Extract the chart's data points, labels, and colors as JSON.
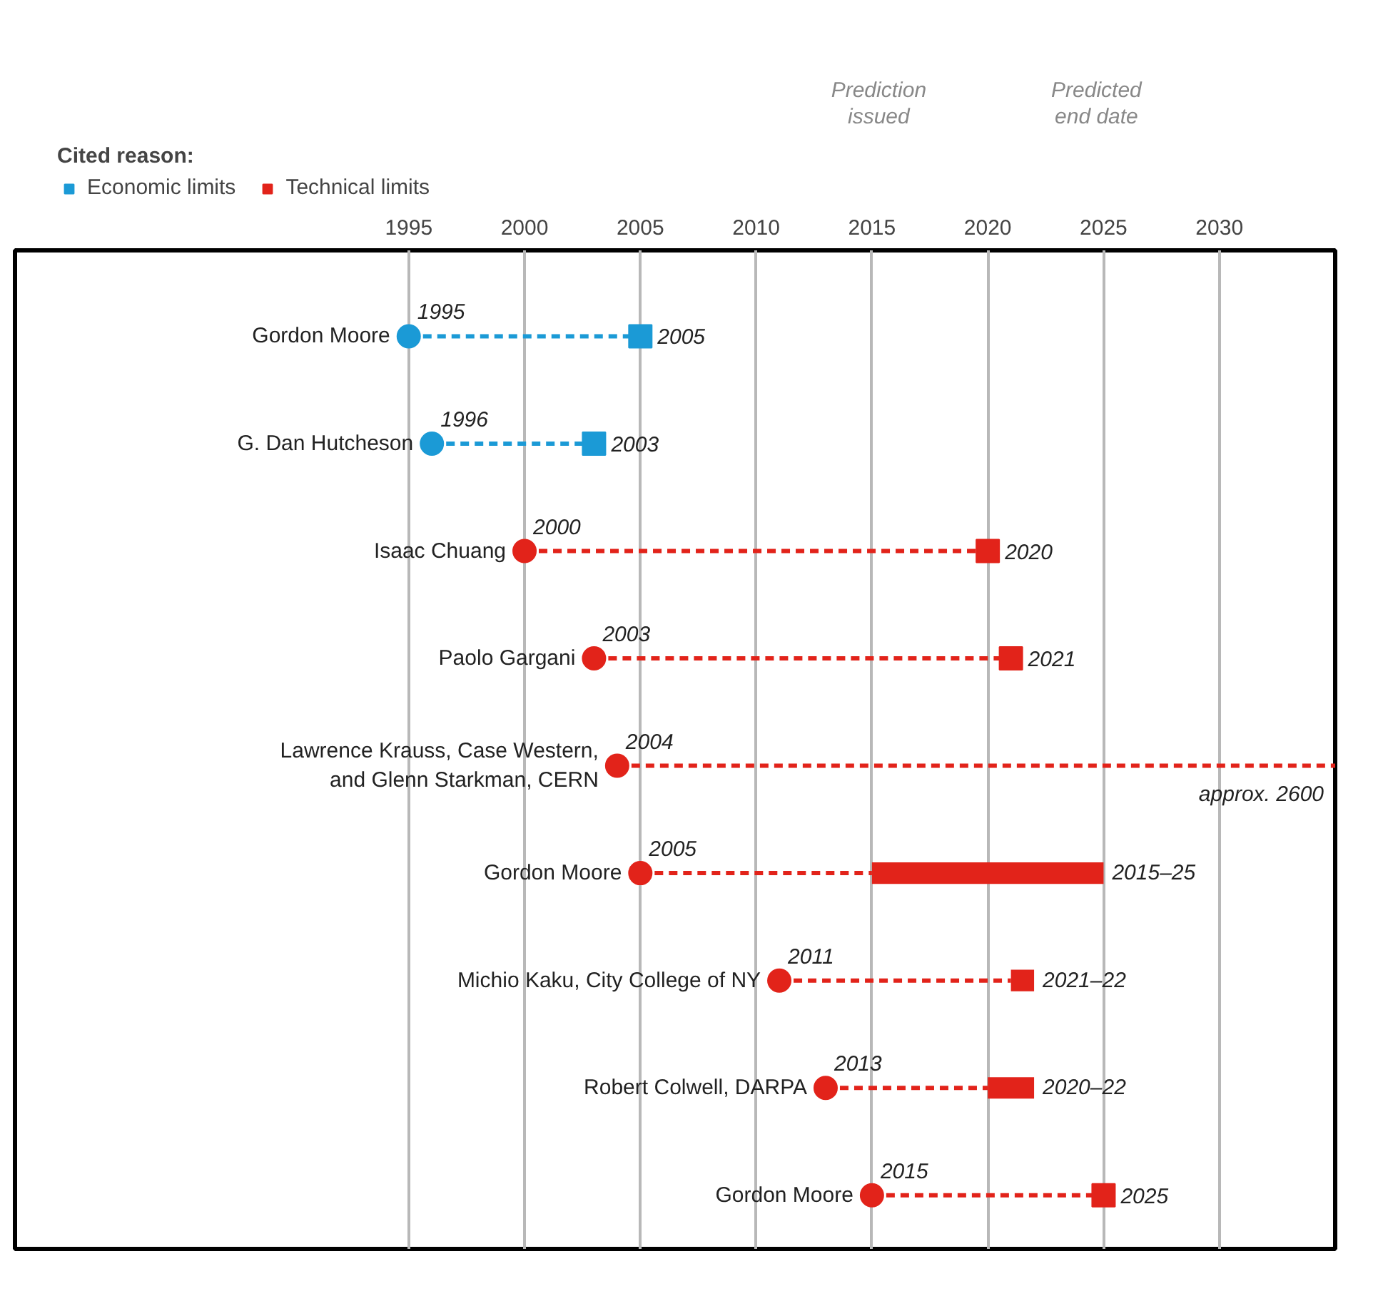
{
  "chart_data": {
    "type": "bar",
    "orientation": "horizontal",
    "categories": [
      "Gordon Moore",
      "G. Dan Hutcheson",
      "Isaac Chuang",
      "Paolo Gargani",
      "Lawrence Krauss, Case Western,\nand Glenn Starkman, CERN",
      "Gordon Moore",
      "Michio Kaku, City College of NY",
      "Robert Colwell, DARPA",
      "Gordon Moore"
    ],
    "xlim": [
      1978,
      2035
    ],
    "xticks": [
      1995,
      2000,
      2005,
      2010,
      2015,
      2020,
      2025,
      2030
    ],
    "grid": "x",
    "legend": "top left",
    "legend_title": "Cited reason:",
    "line_style": "dashed",
    "annotations": [
      "Prediction\nissued",
      "Predicted\nend date"
    ],
    "series": [
      {
        "name": "Economic limits",
        "type": "scatter",
        "marker": "circle",
        "color": "#1b9ad6",
        "values": [
          1995,
          1996,
          null,
          null,
          null,
          null,
          null,
          null,
          null
        ],
        "value_labels": [
          "1995",
          "1996",
          null,
          null,
          null,
          null,
          null,
          null,
          null
        ]
      },
      {
        "name": "Technical limits",
        "type": "scatter",
        "marker": "circle",
        "color": "#e2231a",
        "values": [
          null,
          null,
          2000,
          2003,
          2004,
          2005,
          2011,
          2013,
          2015
        ],
        "value_labels": [
          null,
          null,
          "2000",
          "2003",
          "2004",
          "2005",
          "2011",
          "2013",
          "2015"
        ]
      },
      {
        "type": "scatter",
        "marker": "square",
        "color": "#1b9ad6",
        "values": [
          2005,
          2003,
          null,
          null,
          null,
          null,
          null,
          null,
          null
        ],
        "value_labels": [
          "2005",
          "2003",
          null,
          null,
          null,
          null,
          null,
          null,
          null
        ]
      },
      {
        "type": "scatter",
        "marker": "square",
        "color": "#e2231a",
        "values": [
          null,
          null,
          2020,
          2021,
          null,
          null,
          null,
          null,
          2025
        ],
        "value_labels": [
          null,
          null,
          "2020",
          "2021",
          null,
          null,
          null,
          null,
          "2025"
        ]
      },
      {
        "type": "bar",
        "color": "#e2231a",
        "base": [
          null,
          null,
          null,
          null,
          null,
          2015,
          2021,
          2020,
          null
        ],
        "values": [
          null,
          null,
          null,
          null,
          null,
          10,
          1,
          2,
          null
        ],
        "value_labels": [
          null,
          null,
          null,
          null,
          "approx. 2600",
          "2015–25",
          "2021–22",
          "2020–22",
          null
        ]
      }
    ]
  }
}
